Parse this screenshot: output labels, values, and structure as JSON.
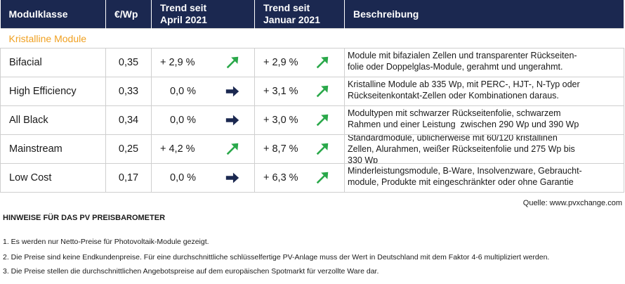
{
  "table": {
    "header": [
      "Modulklasse",
      "€/Wp",
      "Trend seit\nApril 2021",
      "Trend seit\nJanuar 2021",
      "Beschreibung"
    ],
    "section": "Kristalline Module",
    "rows": [
      [
        "Bifacial",
        "0,35",
        "+ 2,9 %",
        "+ 2,9 %",
        "Module mit bifazialen Zellen und transparenter Rückseiten-\nfolie oder Doppelglas-Module, gerahmt und ungerahmt."
      ],
      [
        "High Efficiency",
        "0,33",
        "0,0 %",
        "+ 3,1 %",
        "Kristalline Module ab 335 Wp, mit PERC-, HJT-, N-Typ oder\nRückseitenkontakt-Zellen oder Kombinationen daraus."
      ],
      [
        "All Black",
        "0,34",
        "0,0 %",
        "+ 3,0 %",
        "Modultypen mit schwarzer Rückseitenfolie, schwarzem\nRahmen und einer Leistung  zwischen 290 Wp und 390 Wp"
      ],
      [
        "Mainstream",
        "0,25",
        "+ 4,2 %",
        "+ 8,7 %",
        "Standardmodule, üblicherweise mit 60/120 kristallinen\nZellen, Alurahmen, weißer Rückseitenfolie und 275 Wp bis\n330 Wp"
      ],
      [
        "Low Cost",
        "0,17",
        "0,0 %",
        "+ 6,3 %",
        "Minderleistungsmodule, B-Ware, Insolvenzware, Gebraucht-\nmodule, Produkte mit eingeschränkter oder ohne Garantie"
      ]
    ]
  },
  "source": "Quelle: www.pvxchange.com",
  "notes": {
    "title": "HINWEISE FÜR DAS PV PREISBAROMETER",
    "items": [
      "1.  Es werden nur Netto-Preise für Photovoltaik-Module gezeigt.",
      "2. Die Preise sind keine Endkundenpreise. Für eine durchschnittliche schlüsselfertige PV-Anlage muss der Wert in Deutschland mit dem Faktor 4-6 multipliziert werden.",
      "3. Die Preise stellen die durchschnittlichen Angebotspreise auf dem europäischen Spotmarkt für verzollte Ware dar."
    ]
  }
}
